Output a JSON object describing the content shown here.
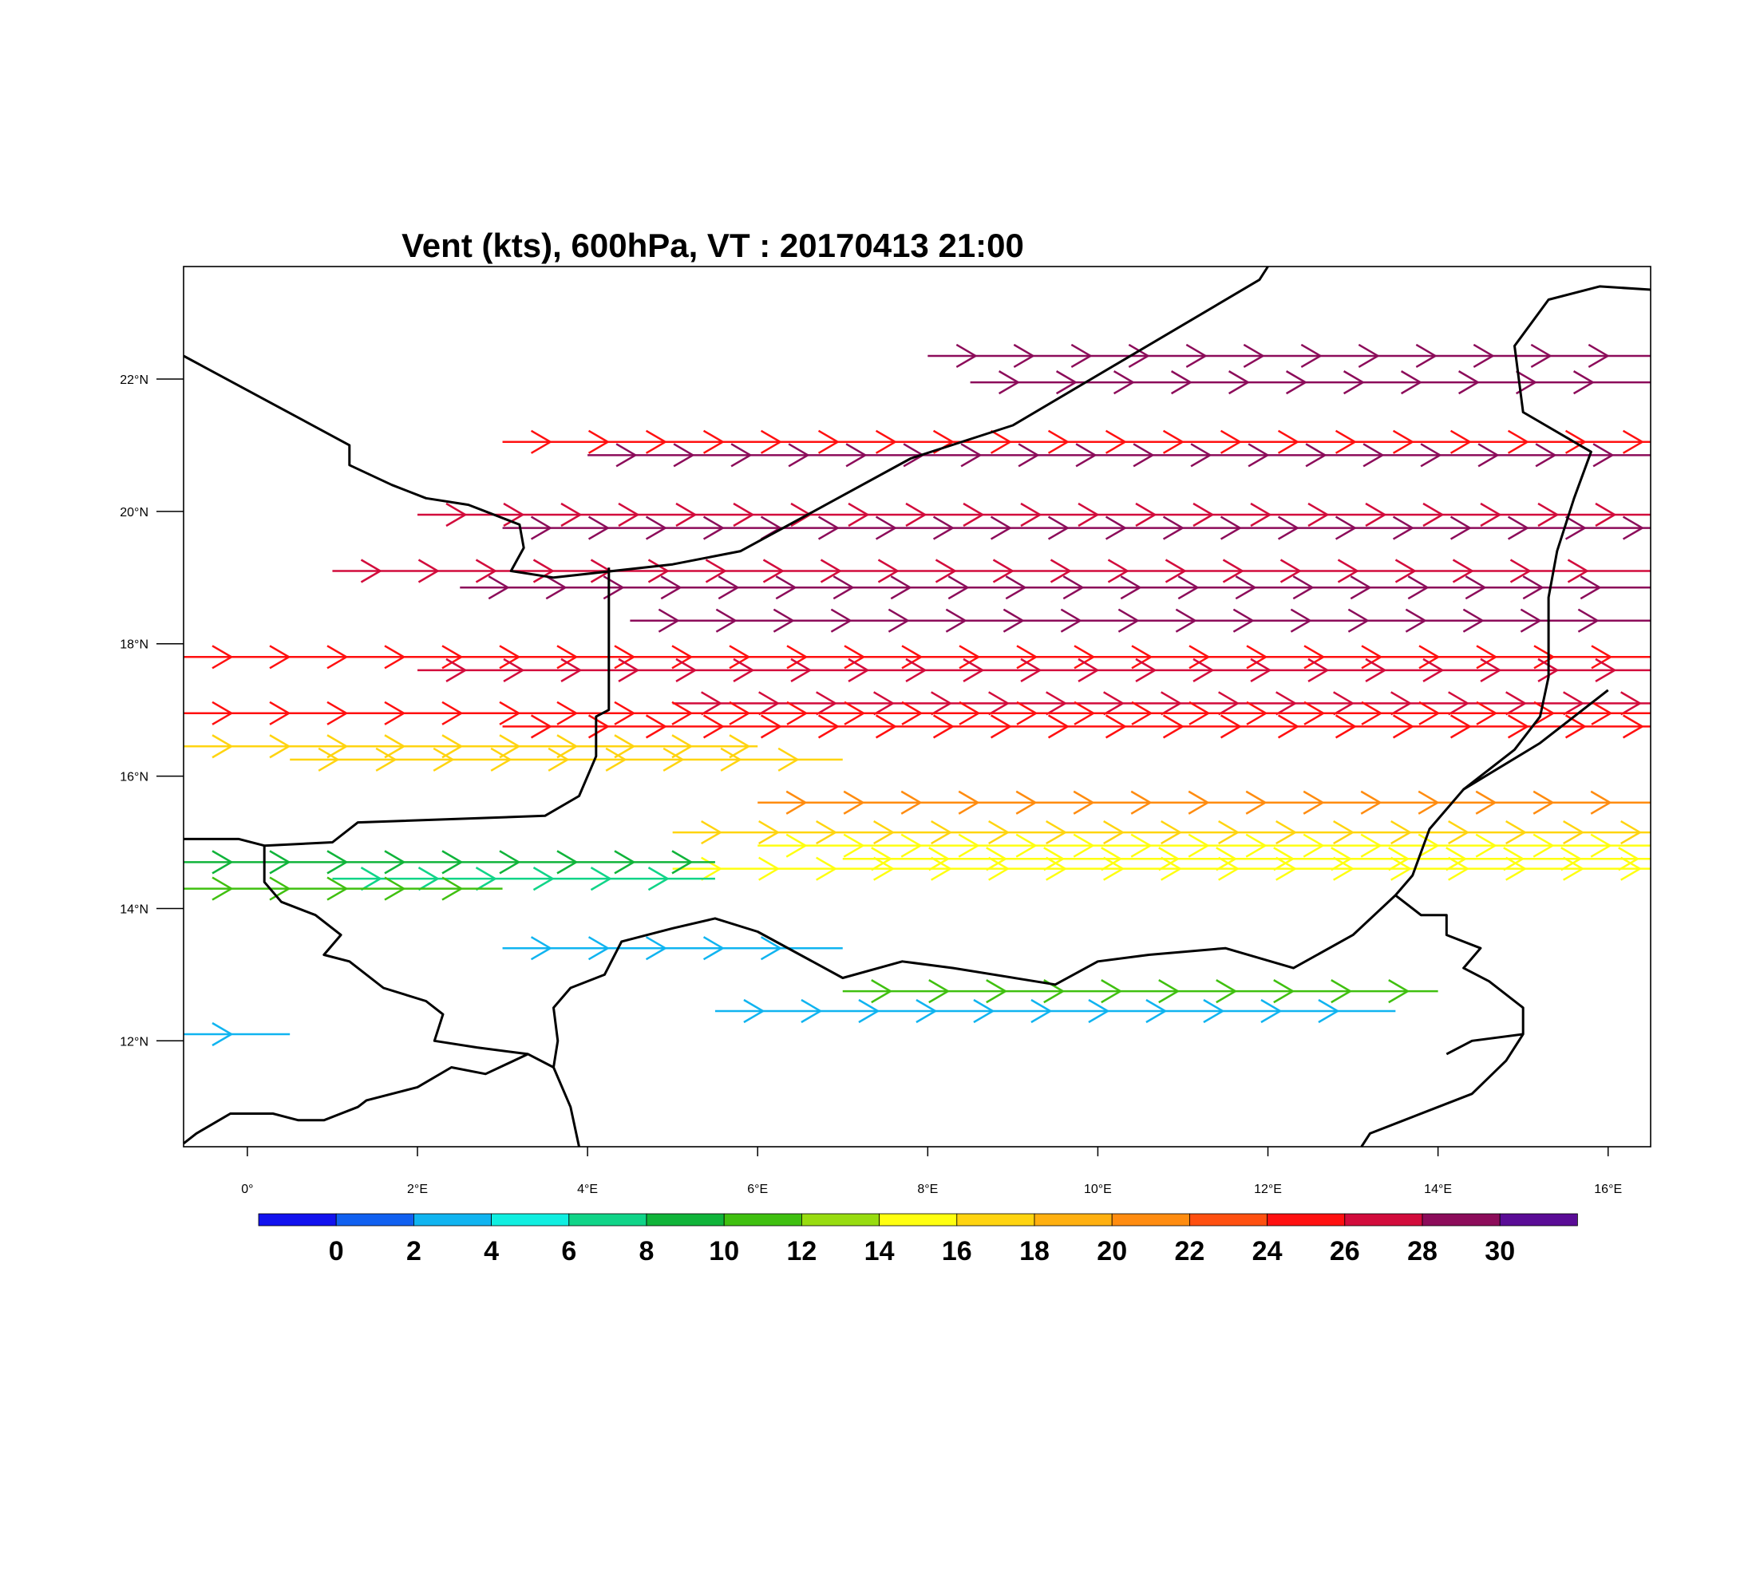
{
  "title": "Vent (kts), 600hPa, VT : 20170413  21:00",
  "map": {
    "lon_range": [
      -0.75,
      16.5
    ],
    "lat_range": [
      10.4,
      23.7
    ],
    "lon_ticks": [
      {
        "lon": 0,
        "label": "0°"
      },
      {
        "lon": 2,
        "label": "2°E"
      },
      {
        "lon": 4,
        "label": "4°E"
      },
      {
        "lon": 6,
        "label": "6°E"
      },
      {
        "lon": 8,
        "label": "8°E"
      },
      {
        "lon": 10,
        "label": "10°E"
      },
      {
        "lon": 12,
        "label": "12°E"
      },
      {
        "lon": 14,
        "label": "14°E"
      },
      {
        "lon": 16,
        "label": "16°E"
      }
    ],
    "lat_ticks": [
      {
        "lat": 12,
        "label": "12°N"
      },
      {
        "lat": 14,
        "label": "14°N"
      },
      {
        "lat": 16,
        "label": "16°N"
      },
      {
        "lat": 18,
        "label": "18°N"
      },
      {
        "lat": 20,
        "label": "20°N"
      },
      {
        "lat": 22,
        "label": "22°N"
      }
    ],
    "colorbar": {
      "colors": [
        "#1212ee",
        "#1060f0",
        "#10b4f0",
        "#10eee0",
        "#10d488",
        "#10b43a",
        "#40c010",
        "#98dc10",
        "#ffff10",
        "#ffd410",
        "#ffb010",
        "#ff8c10",
        "#ff5010",
        "#ff1010",
        "#d20c3c",
        "#8c0c5a",
        "#5a0c96"
      ],
      "labels": [
        "0",
        "2",
        "4",
        "6",
        "8",
        "10",
        "12",
        "14",
        "16",
        "18",
        "20",
        "22",
        "24",
        "26",
        "28",
        "30"
      ]
    },
    "streamlines": [
      {
        "lat": 22.35,
        "lon_start": 8.0,
        "lon_end": 16.5,
        "speed": 31
      },
      {
        "lat": 21.95,
        "lon_start": 8.5,
        "lon_end": 16.5,
        "speed": 31
      },
      {
        "lat": 21.05,
        "lon_start": 3.0,
        "lon_end": 16.5,
        "speed": 27
      },
      {
        "lat": 20.85,
        "lon_start": 4.0,
        "lon_end": 16.5,
        "speed": 30
      },
      {
        "lat": 19.95,
        "lon_start": 2.0,
        "lon_end": 16.5,
        "speed": 29
      },
      {
        "lat": 19.75,
        "lon_start": 3.0,
        "lon_end": 16.5,
        "speed": 30
      },
      {
        "lat": 19.1,
        "lon_start": 1.0,
        "lon_end": 16.5,
        "speed": 29
      },
      {
        "lat": 18.85,
        "lon_start": 2.5,
        "lon_end": 16.5,
        "speed": 30
      },
      {
        "lat": 18.35,
        "lon_start": 4.5,
        "lon_end": 16.5,
        "speed": 30
      },
      {
        "lat": 17.8,
        "lon_start": -0.75,
        "lon_end": 16.5,
        "speed": 27
      },
      {
        "lat": 17.6,
        "lon_start": 2.0,
        "lon_end": 16.5,
        "speed": 29
      },
      {
        "lat": 17.1,
        "lon_start": 5.0,
        "lon_end": 16.5,
        "speed": 28
      },
      {
        "lat": 16.95,
        "lon_start": -0.75,
        "lon_end": 16.5,
        "speed": 26
      },
      {
        "lat": 16.75,
        "lon_start": 3.0,
        "lon_end": 16.5,
        "speed": 27
      },
      {
        "lat": 16.45,
        "lon_start": -0.75,
        "lon_end": 6.0,
        "speed": 19
      },
      {
        "lat": 16.25,
        "lon_start": 0.5,
        "lon_end": 7.0,
        "speed": 18
      },
      {
        "lat": 15.6,
        "lon_start": 6.0,
        "lon_end": 16.5,
        "speed": 23
      },
      {
        "lat": 15.15,
        "lon_start": 5.0,
        "lon_end": 16.5,
        "speed": 19
      },
      {
        "lat": 14.95,
        "lon_start": 6.0,
        "lon_end": 16.5,
        "speed": 17
      },
      {
        "lat": 14.75,
        "lon_start": 7.0,
        "lon_end": 16.5,
        "speed": 16
      },
      {
        "lat": 14.6,
        "lon_start": 5.0,
        "lon_end": 16.5,
        "speed": 17
      },
      {
        "lat": 14.7,
        "lon_start": -0.75,
        "lon_end": 5.5,
        "speed": 11
      },
      {
        "lat": 14.45,
        "lon_start": 1.0,
        "lon_end": 5.5,
        "speed": 8
      },
      {
        "lat": 14.3,
        "lon_start": -0.75,
        "lon_end": 3.0,
        "speed": 13
      },
      {
        "lat": 13.4,
        "lon_start": 3.0,
        "lon_end": 7.0,
        "speed": 5
      },
      {
        "lat": 12.75,
        "lon_start": 7.0,
        "lon_end": 14.0,
        "speed": 12
      },
      {
        "lat": 12.45,
        "lon_start": 5.5,
        "lon_end": 13.5,
        "speed": 5
      },
      {
        "lat": 12.1,
        "lon_start": -0.75,
        "lon_end": 0.5,
        "speed": 5
      }
    ],
    "borders": [
      [
        [
          -0.75,
          22.35
        ],
        [
          1.2,
          21.0
        ],
        [
          1.2,
          20.7
        ],
        [
          1.7,
          20.4
        ],
        [
          2.1,
          20.2
        ],
        [
          2.6,
          20.1
        ],
        [
          3.2,
          19.8
        ],
        [
          3.25,
          19.45
        ],
        [
          3.1,
          19.1
        ],
        [
          3.6,
          19.0
        ],
        [
          5.0,
          19.2
        ],
        [
          5.8,
          19.4
        ],
        [
          6.8,
          20.1
        ],
        [
          7.8,
          20.8
        ],
        [
          9.0,
          21.3
        ],
        [
          11.9,
          23.5
        ],
        [
          12.0,
          23.7
        ]
      ],
      [
        [
          4.25,
          19.15
        ],
        [
          4.25,
          17.0
        ],
        [
          4.1,
          16.9
        ],
        [
          4.1,
          16.3
        ],
        [
          3.9,
          15.7
        ],
        [
          3.5,
          15.4
        ],
        [
          1.3,
          15.3
        ],
        [
          1.0,
          15.0
        ],
        [
          0.2,
          14.95
        ],
        [
          -0.1,
          15.05
        ],
        [
          -0.75,
          15.05
        ]
      ],
      [
        [
          -0.75,
          10.45
        ],
        [
          -0.6,
          10.6
        ],
        [
          -0.2,
          10.9
        ],
        [
          0.3,
          10.9
        ],
        [
          0.6,
          10.8
        ],
        [
          0.9,
          10.8
        ],
        [
          1.3,
          11.0
        ],
        [
          1.4,
          11.1
        ],
        [
          2.0,
          11.3
        ],
        [
          2.4,
          11.6
        ],
        [
          2.8,
          11.5
        ],
        [
          3.3,
          11.8
        ],
        [
          3.6,
          11.6
        ],
        [
          3.8,
          11.0
        ],
        [
          3.9,
          10.4
        ]
      ],
      [
        [
          0.2,
          14.95
        ],
        [
          0.2,
          14.4
        ],
        [
          0.4,
          14.1
        ],
        [
          0.8,
          13.9
        ],
        [
          1.1,
          13.6
        ],
        [
          0.9,
          13.3
        ],
        [
          1.2,
          13.2
        ],
        [
          1.6,
          12.8
        ],
        [
          2.1,
          12.6
        ],
        [
          2.3,
          12.4
        ],
        [
          2.2,
          12.0
        ],
        [
          2.7,
          11.9
        ],
        [
          3.3,
          11.8
        ]
      ],
      [
        [
          3.6,
          11.6
        ],
        [
          3.65,
          12.0
        ],
        [
          3.6,
          12.5
        ],
        [
          3.8,
          12.8
        ],
        [
          4.2,
          13.0
        ],
        [
          4.4,
          13.5
        ],
        [
          5.0,
          13.7
        ],
        [
          5.5,
          13.85
        ],
        [
          6.0,
          13.65
        ],
        [
          6.5,
          13.3
        ],
        [
          7.0,
          12.95
        ],
        [
          7.7,
          13.2
        ],
        [
          8.3,
          13.1
        ],
        [
          9.5,
          12.85
        ],
        [
          10.0,
          13.2
        ],
        [
          10.6,
          13.3
        ],
        [
          11.5,
          13.4
        ],
        [
          12.3,
          13.1
        ],
        [
          13.0,
          13.6
        ],
        [
          13.5,
          14.2
        ],
        [
          13.7,
          14.5
        ],
        [
          13.9,
          15.2
        ],
        [
          14.3,
          15.8
        ],
        [
          15.2,
          16.5
        ],
        [
          16.0,
          17.3
        ]
      ],
      [
        [
          16.5,
          23.35
        ],
        [
          15.9,
          23.4
        ],
        [
          15.3,
          23.2
        ],
        [
          14.9,
          22.5
        ],
        [
          15.0,
          21.5
        ],
        [
          15.8,
          20.9
        ],
        [
          15.6,
          20.2
        ],
        [
          15.4,
          19.4
        ],
        [
          15.3,
          18.7
        ],
        [
          15.3,
          17.5
        ],
        [
          15.2,
          16.9
        ],
        [
          14.9,
          16.4
        ],
        [
          14.3,
          15.8
        ]
      ],
      [
        [
          13.5,
          14.2
        ],
        [
          13.8,
          13.9
        ],
        [
          14.1,
          13.9
        ],
        [
          14.1,
          13.6
        ],
        [
          14.5,
          13.4
        ],
        [
          14.3,
          13.1
        ],
        [
          14.6,
          12.9
        ],
        [
          15.0,
          12.5
        ],
        [
          15.0,
          12.1
        ],
        [
          14.8,
          11.7
        ],
        [
          14.4,
          11.2
        ],
        [
          13.6,
          10.8
        ],
        [
          13.2,
          10.6
        ],
        [
          13.1,
          10.4
        ]
      ],
      [
        [
          14.1,
          11.8
        ],
        [
          14.4,
          12.0
        ],
        [
          15.0,
          12.1
        ]
      ]
    ]
  }
}
